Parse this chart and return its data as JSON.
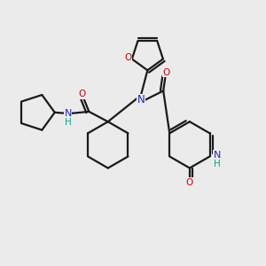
{
  "background_color": "#ebebeb",
  "bond_color": "#1a1a1a",
  "N_color": "#2222cc",
  "O_color": "#cc0000",
  "NH_color": "#00aa88",
  "figsize": [
    3.0,
    3.0
  ],
  "dpi": 100,
  "xlim": [
    0,
    10
  ],
  "ylim": [
    0,
    10
  ]
}
